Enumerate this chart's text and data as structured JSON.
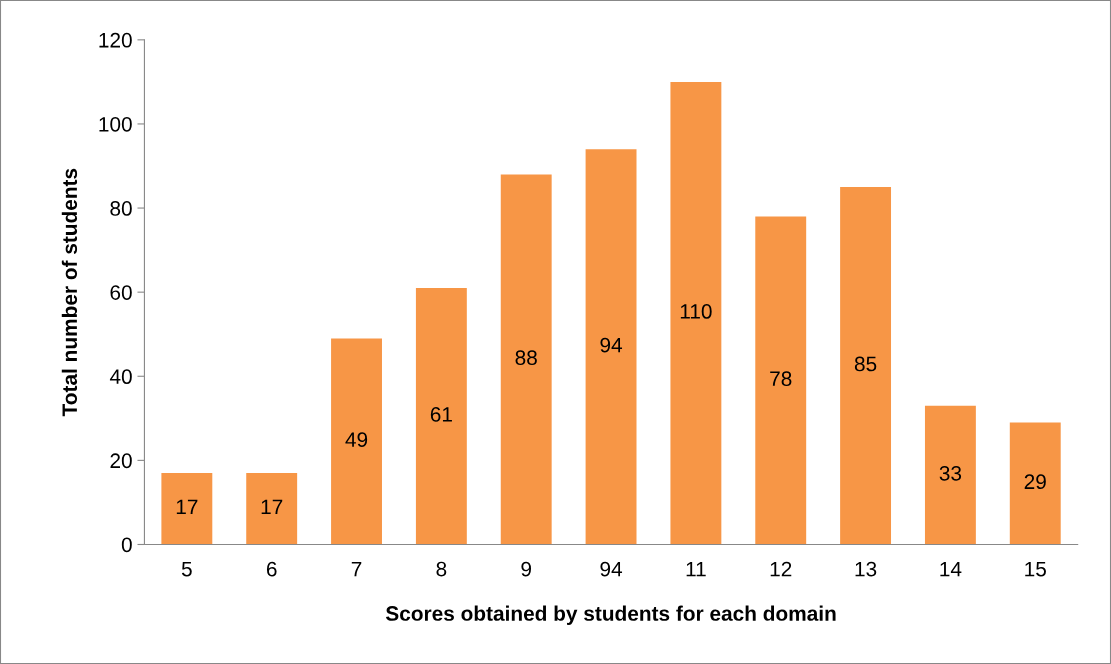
{
  "chart_data": {
    "type": "bar",
    "xlabel": "Scores obtained by students for each domain",
    "ylabel": "Total number of students",
    "categories": [
      "5",
      "6",
      "7",
      "8",
      "9",
      "94",
      "11",
      "12",
      "13",
      "14",
      "15"
    ],
    "values": [
      17,
      17,
      49,
      61,
      88,
      94,
      110,
      78,
      85,
      33,
      29
    ],
    "color": "#f79646",
    "ylim": [
      0,
      120
    ],
    "yticks": [
      0,
      20,
      40,
      60,
      80,
      100,
      120
    ],
    "data_labels": true,
    "grid": false,
    "legend": false
  }
}
